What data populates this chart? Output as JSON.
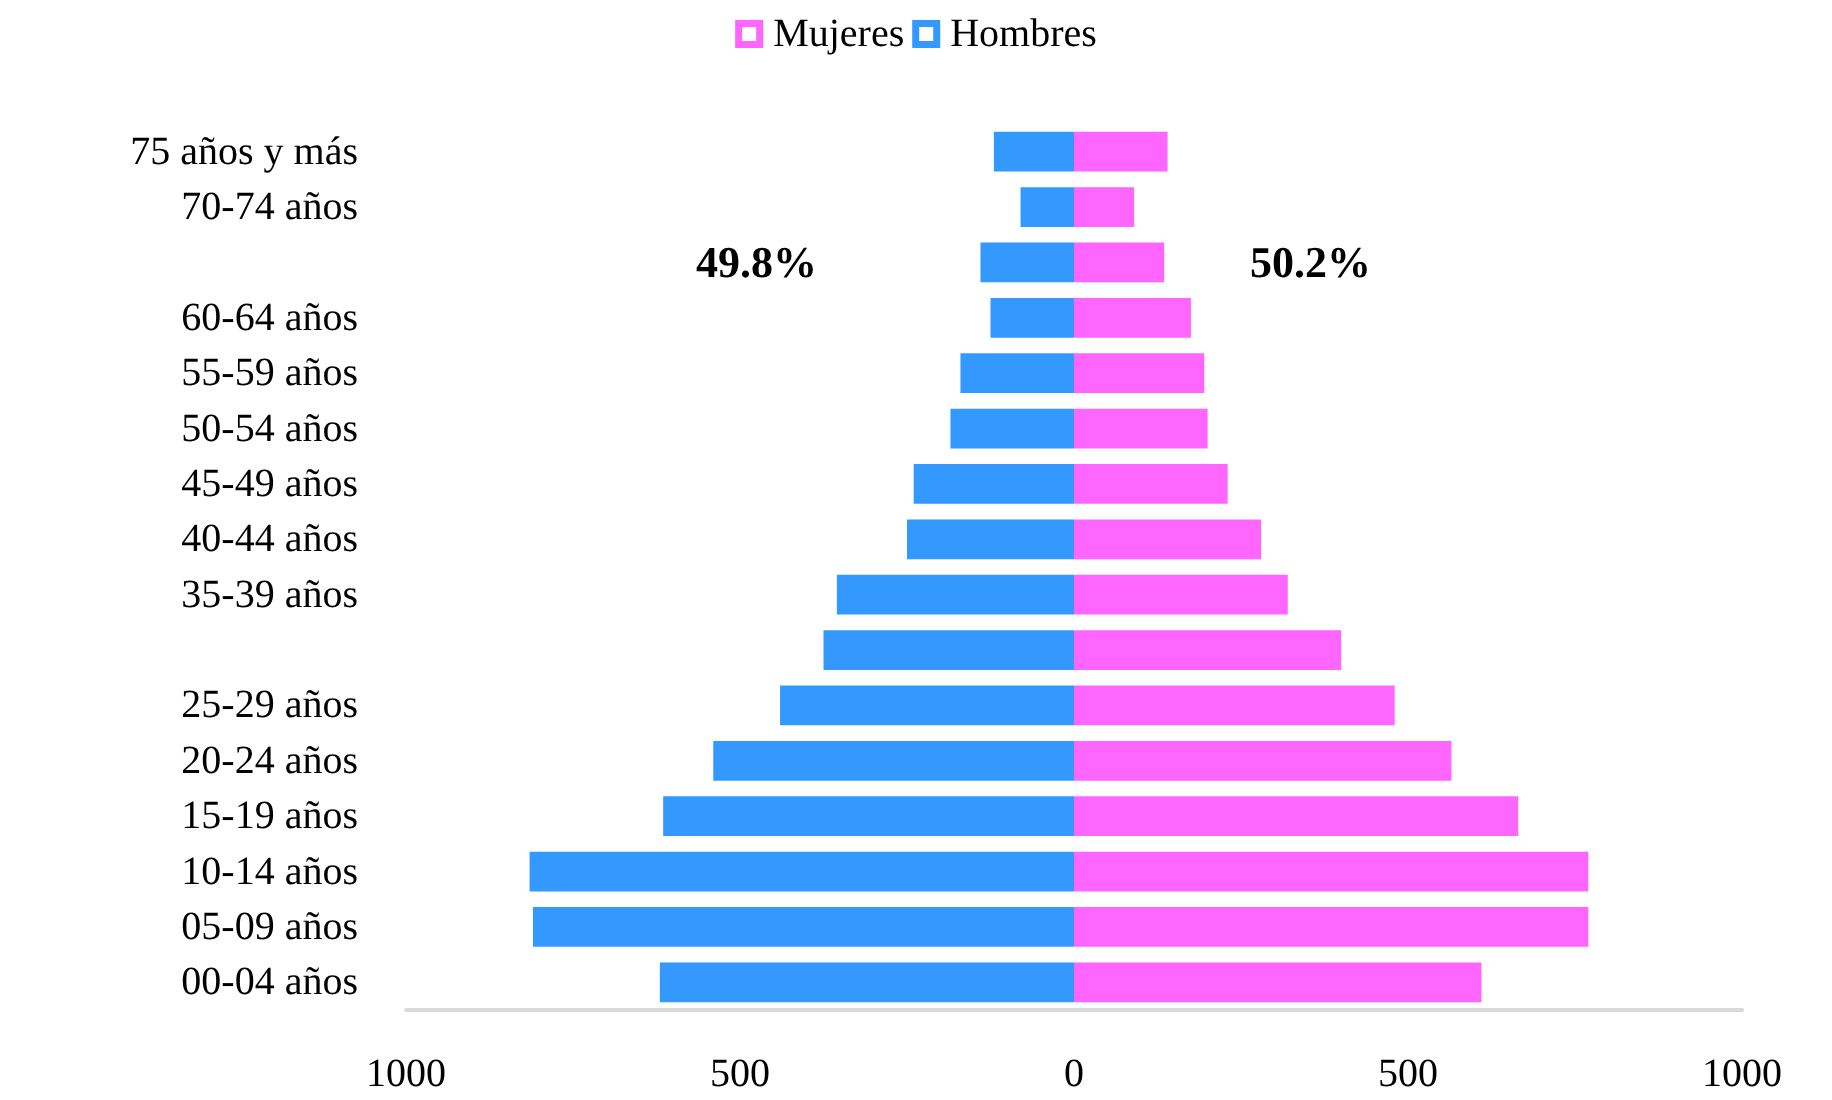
{
  "chart_data": {
    "type": "bar",
    "orientation": "horizontal",
    "stacked": true,
    "categories": [
      "75 años y más",
      "70-74 años",
      null,
      "60-64 años",
      "55-59 años",
      "50-54 años",
      "45-49 años",
      "40-44 años",
      "35-39 años",
      null,
      "25-29 años",
      "20-24 años",
      "15-19 años",
      "10-14 años",
      "05-09 años",
      "00-04 años"
    ],
    "series": [
      {
        "name": "Mujeres",
        "color": "#ff66ff",
        "values": [
          140,
          90,
          135,
          175,
          195,
          200,
          230,
          280,
          320,
          400,
          480,
          565,
          665,
          770,
          770,
          610
        ]
      },
      {
        "name": "Hombres",
        "color": "#3399ff",
        "values": [
          -120,
          -80,
          -140,
          -125,
          -170,
          -185,
          -240,
          -250,
          -355,
          -375,
          -440,
          -540,
          -615,
          -815,
          -810,
          -620
        ]
      }
    ],
    "xlim": [
      -1000,
      1000
    ],
    "xticks": [
      {
        "value": -1000,
        "label": "1000"
      },
      {
        "value": -500,
        "label": "500"
      },
      0,
      500,
      1000
    ],
    "annotations": [
      "49.8%",
      "50.2%"
    ],
    "legend": "top",
    "grid": false
  }
}
